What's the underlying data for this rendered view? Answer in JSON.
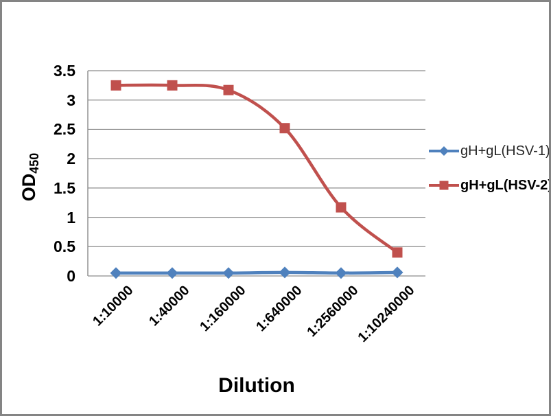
{
  "chart_data": {
    "type": "line",
    "xlabel": "Dilution",
    "ylabel": "OD",
    "ylabel_subscript": "450",
    "categories": [
      "1:10000",
      "1:40000",
      "1:160000",
      "1:640000",
      "1:2560000",
      "1:10240000"
    ],
    "series": [
      {
        "name": "gH+gL(HSV-1)",
        "color": "#4F81BD",
        "marker": "diamond",
        "bold_label": false,
        "values": [
          0.05,
          0.05,
          0.05,
          0.06,
          0.05,
          0.06
        ]
      },
      {
        "name": "gH+gL(HSV-2)",
        "color": "#C0504D",
        "marker": "square",
        "bold_label": true,
        "values": [
          3.25,
          3.25,
          3.17,
          2.52,
          1.17,
          0.4
        ]
      }
    ],
    "ylim": [
      0,
      3.5
    ],
    "ytick_labels": [
      "0",
      "0.5",
      "1",
      "1.5",
      "2",
      "2.5",
      "3",
      "3.5"
    ],
    "grid": true,
    "legend_position": "right",
    "gridline_color": "#8C8C8C",
    "axis_color": "#8C8C8C",
    "text_color": "#000000"
  }
}
